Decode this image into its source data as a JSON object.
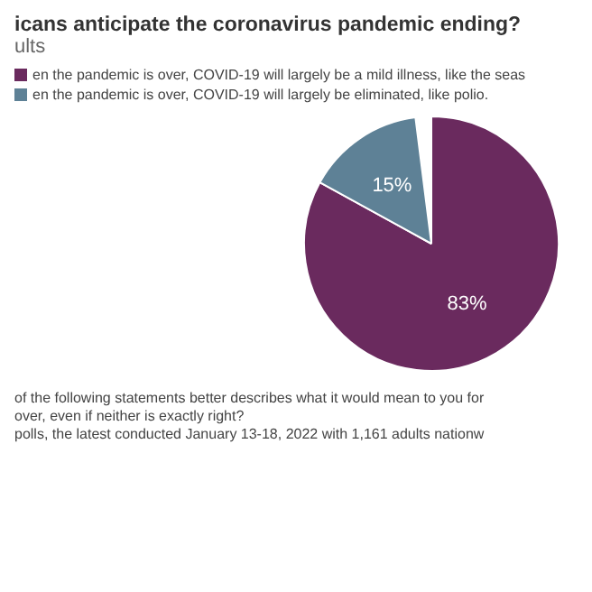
{
  "chart_data": {
    "type": "pie",
    "title": "icans anticipate the coronavirus pandemic ending?",
    "subtitle": "ults",
    "categories": [
      "en the pandemic is over, COVID-19 will largely be a mild illness, like the seas",
      "en the pandemic is over, COVID-19 will largely be eliminated, like polio."
    ],
    "values": [
      83,
      15
    ],
    "value_labels": [
      "83%",
      "15%"
    ],
    "colors": [
      "#6a2a5e",
      "#5e8196"
    ],
    "legend": "top",
    "annotations": [
      "of the following statements better describes what it would mean to you for",
      "over, even if neither is exactly right?",
      "polls, the latest conducted January 13-18, 2022 with 1,161 adults nationw"
    ]
  }
}
